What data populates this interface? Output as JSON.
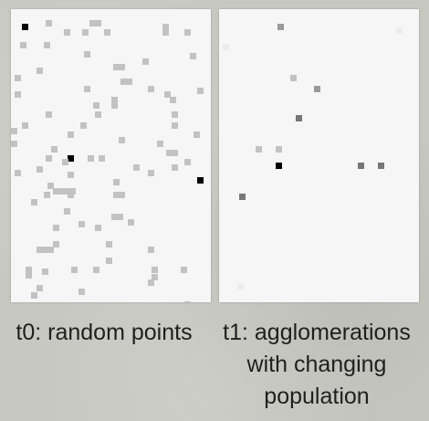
{
  "colors": {
    "background": "#c7c8c1",
    "panel": "#f6f6f6",
    "point_light": "#c2c2c2",
    "point_mid": "#9a9a9a",
    "point_dark": "#777777",
    "point_black": "#000000"
  },
  "panels": [
    {
      "caption": "t0: random points"
    },
    {
      "caption": "t1: agglomerations with changing population"
    }
  ]
}
